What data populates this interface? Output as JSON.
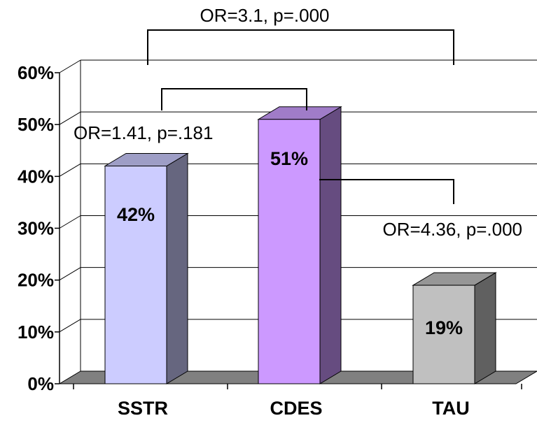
{
  "chart_data": {
    "type": "bar",
    "categories": [
      "SSTR",
      "CDES",
      "TAU"
    ],
    "values": [
      42,
      51,
      19
    ],
    "data_labels": [
      "42%",
      "51%",
      "19%"
    ],
    "ylim": [
      0,
      60
    ],
    "yticks": [
      "0%",
      "10%",
      "20%",
      "30%",
      "40%",
      "50%",
      "60%"
    ],
    "grid": true,
    "legend": "none",
    "style": "3d",
    "colors": {
      "SSTR": {
        "front": "#ccccff",
        "top": "#9e9ec6",
        "side": "#66667f"
      },
      "CDES": {
        "front": "#cc99ff",
        "top": "#a07cc8",
        "side": "#664c80"
      },
      "TAU": {
        "front": "#c0c0c0",
        "top": "#969696",
        "side": "#606060"
      },
      "floor": "#808080"
    },
    "annotations": [
      {
        "text": "OR=3.1, p=.000",
        "from": "SSTR",
        "to": "TAU"
      },
      {
        "text": "OR=1.41, p=.181",
        "from": "SSTR",
        "to": "CDES"
      },
      {
        "text": "OR=4.36, p=.000",
        "from": "CDES",
        "to": "TAU"
      }
    ]
  }
}
